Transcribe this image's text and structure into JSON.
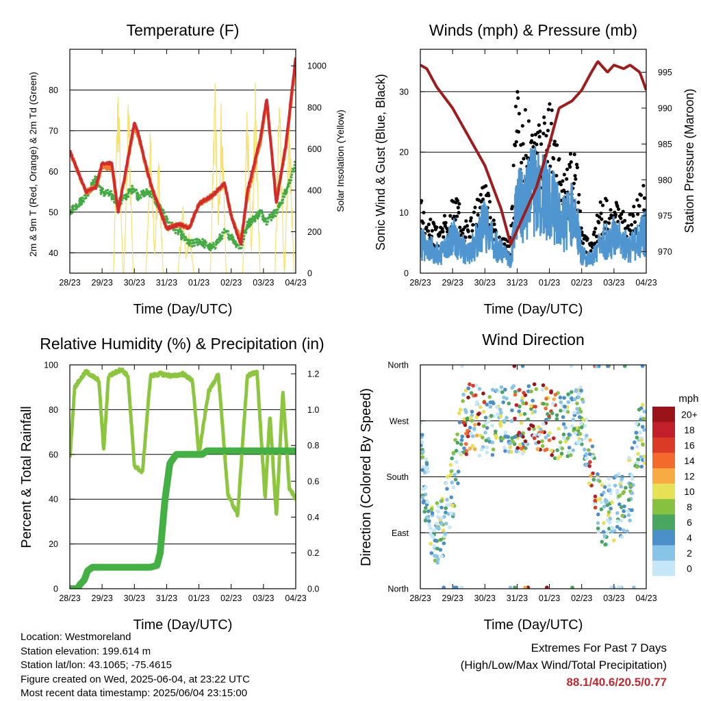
{
  "colors": {
    "temp2m": "#d32b2b",
    "temp9m": "#f07c2a",
    "dewpoint": "#41ab41",
    "solar": "#f6e06e",
    "wind": "#4f95d0",
    "gust": "#000000",
    "pressure": "#9e1c1c",
    "rh": "#8cc63f",
    "precip": "#43b043",
    "extremes": "#c1272d"
  },
  "info": {
    "location": "Location: Westmoreland",
    "elevation": "Station elevation: 199.614 m",
    "latlon": "Station lat/lon: 43.1065; -75.4615",
    "created": "Figure created on Wed, 2025-06-04, at 23:22 UTC",
    "timestamp": "Most recent data timestamp: 2025/06/04 23:15:00"
  },
  "extremes": {
    "title": "Extremes For Past 7 Days",
    "subtitle": "(High/Low/Max Wind/Total Precipitation)",
    "values": "88.1/40.6/20.5/0.77"
  },
  "chart_data": [
    {
      "type": "line",
      "title": "Temperature (F)",
      "xlabel": "Time (Day/UTC)",
      "ylabel": "2m & 9m T (Red, Orange) & 2m Td (Green)",
      "ylabel_right": "Solar Insolation (Yellow)",
      "x_ticks": [
        "28/23",
        "29/23",
        "30/23",
        "31/23",
        "01/23",
        "02/23",
        "03/23",
        "04/23"
      ],
      "ylim": [
        35,
        90
      ],
      "y_ticks": [
        40,
        50,
        60,
        70,
        80
      ],
      "ylim_right": [
        0,
        1080
      ],
      "y_ticks_right": [
        0,
        200,
        400,
        600,
        800,
        1000
      ],
      "x_days": [
        0,
        0.5,
        0.8,
        1,
        1.3,
        1.5,
        2,
        2.1,
        2.5,
        3,
        3.4,
        3.7,
        4,
        4.4,
        4.8,
        5,
        5.3,
        5.5,
        5.9,
        6.1,
        6.4,
        6.7,
        7
      ],
      "series": [
        {
          "name": "2m T",
          "color_key": "temp2m",
          "values": [
            65,
            55,
            56,
            62,
            62,
            50,
            72,
            70,
            57,
            46,
            47,
            46,
            52,
            54,
            57,
            49,
            42,
            55,
            68,
            78,
            52,
            67,
            88
          ]
        },
        {
          "name": "9m T",
          "color_key": "temp9m",
          "values": [
            65,
            55,
            56,
            61,
            61,
            50,
            71,
            69,
            57,
            46,
            47,
            46,
            52,
            54,
            57,
            49,
            43,
            54,
            67,
            77,
            53,
            66,
            87
          ]
        },
        {
          "name": "2m Td",
          "color_key": "dewpoint",
          "values": [
            50,
            54,
            58,
            55,
            54,
            52,
            56,
            54,
            55,
            48,
            45,
            42,
            43,
            41,
            45,
            44,
            41,
            47,
            50,
            48,
            50,
            55,
            62
          ]
        },
        {
          "name": "Solar",
          "color_key": "solar",
          "axis": "right",
          "peaks_x": [
            1.5,
            1.82,
            2.5,
            2.75,
            3.5,
            3.7,
            4.5,
            4.7,
            5.5,
            5.75,
            6.5,
            6.8
          ],
          "peaks_y": [
            1050,
            950,
            780,
            620,
            360,
            250,
            1060,
            890,
            880,
            1020,
            1000,
            850
          ]
        }
      ]
    },
    {
      "type": "scatter",
      "title": "Winds (mph) & Pressure (mb)",
      "xlabel": "Time (Day/UTC)",
      "ylabel": "Sonic Wind & Gust (Blue, Black)",
      "ylabel_right": "Station Pressure (Maroon)",
      "x_ticks": [
        "28/23",
        "29/23",
        "30/23",
        "31/23",
        "01/23",
        "02/23",
        "03/23",
        "04/23"
      ],
      "ylim": [
        0,
        37
      ],
      "y_ticks": [
        0,
        10,
        20,
        30
      ],
      "ylim_right": [
        967,
        998.2
      ],
      "y_ticks_right": [
        970,
        975,
        980,
        985,
        990,
        995
      ],
      "x_days": [
        0,
        0.3,
        0.6,
        1,
        1.5,
        2,
        2.4,
        2.8,
        3,
        3.2,
        3.5,
        4,
        4.4,
        4.8,
        5,
        5.3,
        5.6,
        6,
        6.5,
        7
      ],
      "wind_mean": [
        5,
        4,
        3,
        6,
        3,
        8,
        4,
        2,
        12,
        10,
        14,
        12,
        8,
        10,
        3,
        2,
        5,
        6,
        4,
        7
      ],
      "gust_max": [
        13,
        9,
        8,
        14,
        8,
        16,
        6,
        6,
        34,
        30,
        22,
        30,
        16,
        23,
        7,
        5,
        13,
        12,
        10,
        16
      ],
      "pressure": {
        "x_days": [
          0,
          0.2,
          0.5,
          1,
          1.5,
          2,
          2.5,
          2.8,
          3,
          3.3,
          3.6,
          4,
          4.3,
          4.7,
          5,
          5.3,
          5.5,
          5.8,
          6,
          6.3,
          6.5,
          6.8,
          7
        ],
        "values": [
          996,
          995.5,
          993,
          990,
          986,
          982,
          976,
          971,
          973,
          976,
          979,
          985,
          990,
          991,
          992.5,
          995,
          996.5,
          995,
          996,
          995.5,
          996,
          995,
          992.5
        ]
      }
    },
    {
      "type": "line",
      "title": "Relative Humidity (%) & Precipitation (in)",
      "xlabel": "Time (Day/UTC)",
      "ylabel": "Percent & Total Rainfall",
      "x_ticks": [
        "28/23",
        "29/23",
        "30/23",
        "31/23",
        "01/23",
        "02/23",
        "03/23",
        "04/23"
      ],
      "ylim": [
        0,
        100
      ],
      "y_ticks": [
        0,
        20,
        40,
        60,
        80,
        100
      ],
      "ylim_right": [
        0,
        1.25
      ],
      "y_ticks_right": [
        0.0,
        0.2,
        0.4,
        0.6,
        0.8,
        1.0,
        1.2
      ],
      "series": [
        {
          "name": "RH",
          "color_key": "rh",
          "x_days": [
            0,
            0.15,
            0.5,
            0.9,
            1.05,
            1.2,
            1.6,
            1.8,
            2.0,
            2.25,
            2.5,
            2.8,
            3.2,
            3.5,
            3.8,
            4.0,
            4.3,
            4.6,
            4.9,
            5.2,
            5.5,
            5.8,
            6.05,
            6.2,
            6.4,
            6.6,
            6.8,
            7
          ],
          "values": [
            58,
            90,
            97,
            93,
            62,
            95,
            98,
            95,
            55,
            52,
            95,
            96,
            95,
            96,
            93,
            60,
            88,
            96,
            42,
            33,
            95,
            97,
            40,
            78,
            32,
            88,
            45,
            40
          ]
        },
        {
          "name": "Precip",
          "color_key": "precip",
          "axis": "right",
          "x_days": [
            0,
            0.25,
            0.3,
            0.45,
            0.55,
            0.7,
            2.5,
            2.7,
            2.8,
            2.95,
            3.1,
            3.3,
            4.1,
            4.25,
            7
          ],
          "values": [
            0,
            0,
            0.02,
            0.05,
            0.1,
            0.12,
            0.12,
            0.13,
            0.2,
            0.5,
            0.7,
            0.75,
            0.75,
            0.77,
            0.77
          ]
        }
      ]
    },
    {
      "type": "scatter",
      "title": "Wind Direction",
      "xlabel": "Time (Day/UTC)",
      "ylabel": "Direction (Colored By Speed)",
      "x_ticks": [
        "28/23",
        "29/23",
        "30/23",
        "31/23",
        "01/23",
        "02/23",
        "03/23",
        "04/23"
      ],
      "y_ticks": [
        "North",
        "East",
        "South",
        "West",
        "North"
      ],
      "ylim": [
        0,
        360
      ],
      "colorbar_title": "mph",
      "colorbar_labels": [
        "0",
        "2",
        "4",
        "6",
        "8",
        "10",
        "12",
        "14",
        "16",
        "18",
        "20+"
      ],
      "colorbar_colors": [
        "#c6e7f7",
        "#88c4e8",
        "#4a8fc8",
        "#48a661",
        "#86c240",
        "#e6e156",
        "#f8ab42",
        "#f26b2d",
        "#db3a27",
        "#c1202a",
        "#9a1318"
      ],
      "x_days": [
        0,
        0.4,
        0.6,
        1,
        1.3,
        1.6,
        2,
        2.4,
        2.8,
        3.2,
        3.6,
        4,
        4.3,
        4.7,
        5,
        5.3,
        5.6,
        6,
        6.4,
        6.8,
        7
      ],
      "direction": [
        220,
        80,
        90,
        160,
        260,
        280,
        260,
        270,
        275,
        270,
        275,
        270,
        260,
        270,
        280,
        200,
        120,
        130,
        140,
        240,
        260
      ]
    }
  ]
}
